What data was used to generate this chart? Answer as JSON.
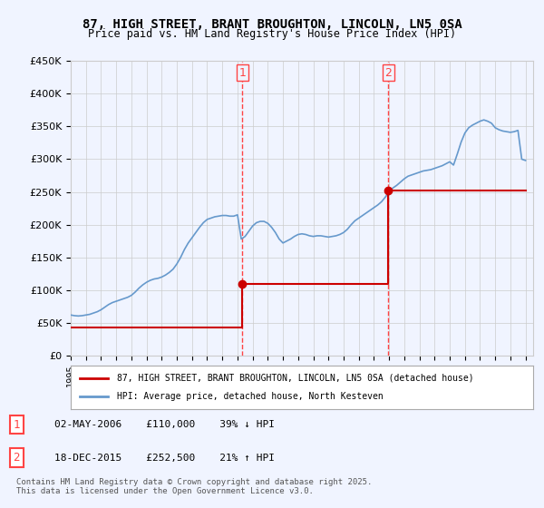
{
  "title_line1": "87, HIGH STREET, BRANT BROUGHTON, LINCOLN, LN5 0SA",
  "title_line2": "Price paid vs. HM Land Registry's House Price Index (HPI)",
  "ylabel": "",
  "ylim": [
    0,
    450000
  ],
  "yticks": [
    0,
    50000,
    100000,
    150000,
    200000,
    250000,
    300000,
    350000,
    400000,
    450000
  ],
  "ytick_labels": [
    "£0",
    "£50K",
    "£100K",
    "£150K",
    "£200K",
    "£250K",
    "£300K",
    "£350K",
    "£400K",
    "£450K"
  ],
  "xlim_start": 1995.0,
  "xlim_end": 2025.5,
  "transaction1_date": 2006.33,
  "transaction1_price": 110000,
  "transaction1_label": "1",
  "transaction1_text": "02-MAY-2006    £110,000    39% ↓ HPI",
  "transaction2_date": 2015.96,
  "transaction2_price": 252500,
  "transaction2_label": "2",
  "transaction2_text": "18-DEC-2015    £252,500    21% ↑ HPI",
  "red_color": "#cc0000",
  "blue_color": "#6699cc",
  "marker_color": "#cc0000",
  "vline_color": "#ff4444",
  "background_color": "#f0f4ff",
  "plot_bg_color": "#ffffff",
  "legend_label_red": "87, HIGH STREET, BRANT BROUGHTON, LINCOLN, LN5 0SA (detached house)",
  "legend_label_blue": "HPI: Average price, detached house, North Kesteven",
  "copyright_text": "Contains HM Land Registry data © Crown copyright and database right 2025.\nThis data is licensed under the Open Government Licence v3.0.",
  "hpi_data": {
    "years": [
      1995,
      1995.25,
      1995.5,
      1995.75,
      1996,
      1996.25,
      1996.5,
      1996.75,
      1997,
      1997.25,
      1997.5,
      1997.75,
      1998,
      1998.25,
      1998.5,
      1998.75,
      1999,
      1999.25,
      1999.5,
      1999.75,
      2000,
      2000.25,
      2000.5,
      2000.75,
      2001,
      2001.25,
      2001.5,
      2001.75,
      2002,
      2002.25,
      2002.5,
      2002.75,
      2003,
      2003.25,
      2003.5,
      2003.75,
      2004,
      2004.25,
      2004.5,
      2004.75,
      2005,
      2005.25,
      2005.5,
      2005.75,
      2006,
      2006.25,
      2006.5,
      2006.75,
      2007,
      2007.25,
      2007.5,
      2007.75,
      2008,
      2008.25,
      2008.5,
      2008.75,
      2009,
      2009.25,
      2009.5,
      2009.75,
      2010,
      2010.25,
      2010.5,
      2010.75,
      2011,
      2011.25,
      2011.5,
      2011.75,
      2012,
      2012.25,
      2012.5,
      2012.75,
      2013,
      2013.25,
      2013.5,
      2013.75,
      2014,
      2014.25,
      2014.5,
      2014.75,
      2015,
      2015.25,
      2015.5,
      2015.75,
      2016,
      2016.25,
      2016.5,
      2016.75,
      2017,
      2017.25,
      2017.5,
      2017.75,
      2018,
      2018.25,
      2018.5,
      2018.75,
      2019,
      2019.25,
      2019.5,
      2019.75,
      2020,
      2020.25,
      2020.5,
      2020.75,
      2021,
      2021.25,
      2021.5,
      2021.75,
      2022,
      2022.25,
      2022.5,
      2022.75,
      2023,
      2023.25,
      2023.5,
      2023.75,
      2024,
      2024.25,
      2024.5,
      2024.75,
      2025
    ],
    "values": [
      62000,
      61000,
      60500,
      61000,
      62000,
      63000,
      65000,
      67000,
      70000,
      74000,
      78000,
      81000,
      83000,
      85000,
      87000,
      89000,
      92000,
      97000,
      103000,
      108000,
      112000,
      115000,
      117000,
      118000,
      120000,
      123000,
      127000,
      132000,
      140000,
      150000,
      162000,
      172000,
      180000,
      188000,
      196000,
      203000,
      208000,
      210000,
      212000,
      213000,
      214000,
      214000,
      213000,
      213000,
      215000,
      178000,
      182000,
      190000,
      198000,
      203000,
      205000,
      205000,
      202000,
      196000,
      188000,
      178000,
      172000,
      175000,
      178000,
      182000,
      185000,
      186000,
      185000,
      183000,
      182000,
      183000,
      183000,
      182000,
      181000,
      182000,
      183000,
      185000,
      188000,
      193000,
      200000,
      206000,
      210000,
      214000,
      218000,
      222000,
      226000,
      230000,
      235000,
      242000,
      250000,
      256000,
      260000,
      265000,
      270000,
      274000,
      276000,
      278000,
      280000,
      282000,
      283000,
      284000,
      286000,
      288000,
      290000,
      293000,
      296000,
      291000,
      308000,
      326000,
      340000,
      348000,
      352000,
      355000,
      358000,
      360000,
      358000,
      355000,
      348000,
      345000,
      343000,
      342000,
      341000,
      342000,
      344000,
      300000,
      298000
    ]
  },
  "price_data": {
    "years": [
      1995.0,
      2006.33,
      2006.33,
      2015.96,
      2015.96,
      2025.0
    ],
    "values": [
      43000,
      43000,
      110000,
      110000,
      252500,
      252500
    ]
  }
}
